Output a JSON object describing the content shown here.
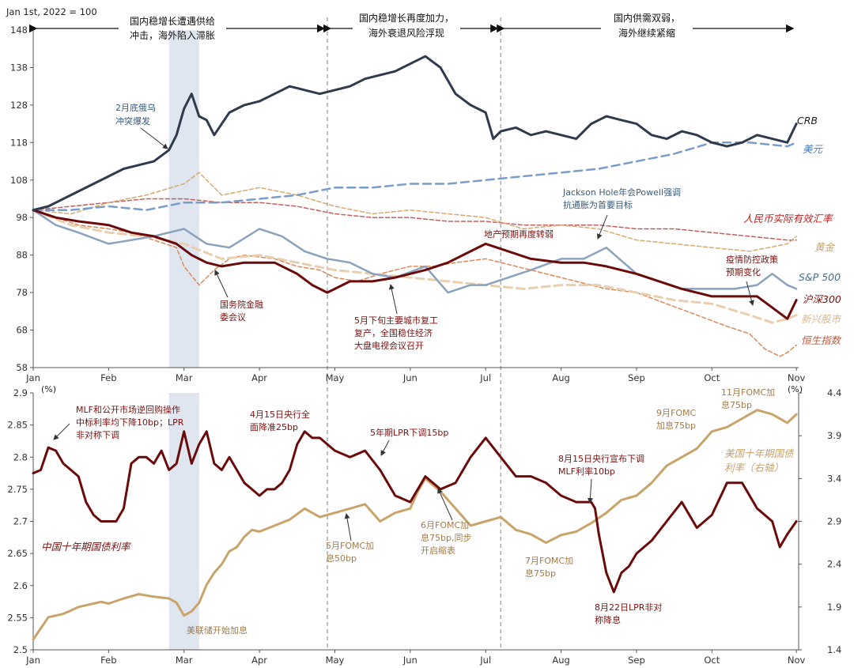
{
  "phases": [
    {
      "lines": [
        "国内稳增长遭遇供给",
        "冲击，海外陷入滞胀"
      ]
    },
    {
      "lines": [
        "国内稳增长再度加力，",
        "海外衰退风险浮现"
      ]
    },
    {
      "lines": [
        "国内供需双弱，",
        "海外继续紧缩"
      ]
    }
  ],
  "colors": {
    "crb": "#2f3a4c",
    "usd": "#7a9cc8",
    "rmb_reer": "#c46060",
    "gold": "#d4aa70",
    "sp500": "#8aa2bc",
    "csi300": "#6b0a0a",
    "em_equity": "#e8cfb0",
    "hsi": "#d98a5a",
    "china_10y": "#6b0a0a",
    "us_10y": "#c9a46a",
    "shade": "#dfe6ef"
  },
  "top_chart": {
    "base_note": "Jan 1st, 2022 = 100",
    "series": [
      {
        "name": "CRB"
      },
      {
        "name": "美元"
      },
      {
        "name": "人民币实际有效汇率"
      },
      {
        "name": "黄金"
      },
      {
        "name": "S&P 500"
      },
      {
        "name": "沪深300"
      },
      {
        "name": "新兴股市"
      },
      {
        "name": "恒生指数"
      }
    ],
    "annotations": [
      {
        "lines": [
          "2月底俄乌",
          "冲突爆发"
        ]
      },
      {
        "lines": [
          "Jackson Hole年会Powell强调",
          "抗通胀为首要目标"
        ]
      },
      {
        "lines": [
          "地产预期再度转弱"
        ]
      },
      {
        "lines": [
          "国务院金融",
          "委会议"
        ]
      },
      {
        "lines": [
          "5月下旬主要城市复工",
          "复产，全国稳住经济",
          "大盘电视会议召开"
        ]
      },
      {
        "lines": [
          "疫情防控政策",
          "预期变化"
        ]
      }
    ]
  },
  "bottom_chart": {
    "left_unit": "(%)",
    "right_unit": "(%)",
    "series": [
      {
        "name": "中国十年期国债利率"
      },
      {
        "name_lines": [
          "美国十年期国债",
          "利率（右轴）"
        ]
      }
    ],
    "annotations": [
      {
        "lines": [
          "MLF和公开市场逆回购操作",
          "中标利率均下降10bp；LPR",
          "非对称下调"
        ]
      },
      {
        "lines": [
          "4月15日央行全",
          "面降准25bp"
        ]
      },
      {
        "lines": [
          "5年期LPR下调15bp"
        ]
      },
      {
        "lines": [
          "8月15日央行宣布下调",
          "MLF利率10bp"
        ]
      },
      {
        "lines": [
          "8月22日LPR非对",
          "称降息"
        ]
      },
      {
        "lines": [
          "美联储开始加息"
        ]
      },
      {
        "lines": [
          "5月FOMC加",
          "息50bp"
        ]
      },
      {
        "lines": [
          "6月FOMC加",
          "息75bp,同步",
          "开启缩表"
        ]
      },
      {
        "lines": [
          "7月FOMC加",
          "息75bp"
        ]
      },
      {
        "lines": [
          "9月FOMC",
          "加息75bp"
        ]
      },
      {
        "lines": [
          "11月FOMC加",
          "息75bp"
        ]
      }
    ]
  },
  "chart_data": [
    {
      "type": "line",
      "title": "",
      "ylabel": "Jan 1st, 2022 = 100",
      "ylim": [
        58,
        148
      ],
      "yticks": [
        58,
        68,
        78,
        88,
        98,
        108,
        118,
        128,
        138,
        148
      ],
      "x_months": [
        1,
        2,
        3,
        4,
        5,
        6,
        7,
        8,
        9,
        10,
        11.12
      ],
      "xlim": [
        1,
        11.15
      ],
      "month_labels": [
        "Jan",
        "Feb",
        "Mar",
        "Apr",
        "May",
        "Jun",
        "Jul",
        "Aug",
        "Sep",
        "Oct",
        "Nov"
      ],
      "shaded_period": [
        2.8,
        3.2
      ],
      "phase_boundaries": [
        4.9,
        7.2
      ],
      "series": [
        {
          "name": "CRB",
          "key": "crb",
          "style": "solid",
          "width": 3,
          "x": [
            1,
            1.2,
            1.4,
            1.6,
            1.8,
            2,
            2.2,
            2.4,
            2.6,
            2.8,
            2.9,
            3.0,
            3.1,
            3.2,
            3.3,
            3.4,
            3.6,
            3.8,
            4.0,
            4.2,
            4.4,
            4.6,
            4.8,
            5.0,
            5.2,
            5.4,
            5.6,
            5.8,
            6.0,
            6.2,
            6.4,
            6.6,
            6.8,
            7.0,
            7.1,
            7.2,
            7.4,
            7.6,
            7.8,
            8.0,
            8.2,
            8.4,
            8.6,
            8.8,
            9.0,
            9.2,
            9.4,
            9.6,
            9.8,
            10.0,
            10.2,
            10.4,
            10.6,
            10.8,
            11.0,
            11.12
          ],
          "y": [
            100,
            101,
            103,
            105,
            107,
            109,
            111,
            112,
            113,
            116,
            120,
            127,
            131,
            125,
            124,
            120,
            126,
            128,
            129,
            131,
            133,
            132,
            131,
            132,
            133,
            135,
            136,
            137,
            139,
            141,
            138,
            131,
            128,
            126,
            119,
            121,
            122,
            120,
            121,
            120,
            119,
            123,
            125,
            124,
            123,
            120,
            119,
            121,
            120,
            118,
            117,
            118,
            120,
            119,
            118,
            123
          ]
        },
        {
          "name": "美元",
          "key": "usd",
          "style": "dash",
          "width": 2.5,
          "x": [
            1,
            1.5,
            2,
            2.5,
            3,
            3.5,
            4,
            4.5,
            5,
            5.5,
            6,
            6.5,
            7,
            7.5,
            8,
            8.5,
            9,
            9.5,
            10,
            10.5,
            11,
            11.12
          ],
          "y": [
            100,
            100,
            101,
            100,
            102,
            102,
            103,
            104,
            106,
            106,
            107,
            107,
            108,
            109,
            110,
            111,
            113,
            115,
            118,
            118,
            117,
            118
          ]
        },
        {
          "name": "人民币实际有效汇率",
          "key": "rmb_reer",
          "style": "dash",
          "width": 1.5,
          "x": [
            1,
            1.5,
            2,
            2.5,
            3,
            3.5,
            4,
            4.5,
            5,
            5.5,
            6,
            6.5,
            7,
            7.5,
            8,
            8.5,
            9,
            9.5,
            10,
            10.5,
            11,
            11.12
          ],
          "y": [
            100,
            101,
            102,
            103,
            103,
            102,
            102,
            101,
            99,
            98,
            98,
            97,
            97,
            96,
            96,
            96,
            95,
            95,
            94,
            93,
            92,
            92
          ]
        },
        {
          "name": "黄金",
          "key": "gold",
          "style": "dash",
          "width": 1.5,
          "x": [
            1,
            1.5,
            2,
            2.5,
            3,
            3.2,
            3.5,
            4,
            4.5,
            5,
            5.5,
            6,
            6.5,
            7,
            7.5,
            8,
            8.5,
            9,
            9.5,
            10,
            10.5,
            11,
            11.12
          ],
          "y": [
            100,
            99,
            102,
            104,
            107,
            110,
            104,
            106,
            104,
            101,
            99,
            100,
            99,
            98,
            95,
            96,
            95,
            92,
            91,
            90,
            89,
            91,
            93
          ]
        },
        {
          "name": "S&P 500",
          "key": "sp500",
          "style": "solid",
          "width": 2.5,
          "x": [
            1,
            1.3,
            1.6,
            2,
            2.3,
            2.6,
            3,
            3.3,
            3.6,
            4,
            4.3,
            4.6,
            4.9,
            5.2,
            5.5,
            5.8,
            6.2,
            6.5,
            6.8,
            7.0,
            7.3,
            7.6,
            8.0,
            8.3,
            8.6,
            9.0,
            9.3,
            9.6,
            10,
            10.3,
            10.6,
            10.8,
            11,
            11.12
          ],
          "y": [
            100,
            96,
            94,
            91,
            92,
            93,
            95,
            91,
            90,
            95,
            93,
            89,
            87,
            86,
            83,
            82,
            85,
            78,
            80,
            80,
            82,
            84,
            87,
            87,
            90,
            83,
            81,
            79,
            79,
            79,
            80,
            83,
            80,
            79
          ]
        },
        {
          "name": "沪深300",
          "key": "csi300",
          "style": "solid",
          "width": 3,
          "x": [
            1,
            1.3,
            1.6,
            2,
            2.3,
            2.6,
            2.9,
            3.1,
            3.3,
            3.5,
            3.8,
            4.2,
            4.5,
            4.7,
            4.9,
            5.2,
            5.5,
            5.8,
            6.2,
            6.5,
            6.8,
            7.0,
            7.3,
            7.6,
            8,
            8.3,
            8.6,
            9,
            9.3,
            9.6,
            10,
            10.3,
            10.6,
            10.8,
            11,
            11.12
          ],
          "y": [
            100,
            98,
            97,
            96,
            94,
            93,
            91,
            88,
            86,
            85,
            86,
            86,
            83,
            80,
            78,
            81,
            81,
            82,
            84,
            86,
            89,
            91,
            89,
            87,
            86,
            86,
            85,
            83,
            81,
            79,
            77,
            77,
            77,
            74,
            71,
            76
          ]
        },
        {
          "name": "新兴股市",
          "key": "em_equity",
          "style": "dash",
          "width": 3,
          "x": [
            1,
            1.5,
            2,
            2.5,
            3,
            3.5,
            4,
            4.5,
            5,
            5.5,
            6,
            6.5,
            7,
            7.5,
            8,
            8.5,
            9,
            9.5,
            10,
            10.5,
            10.8,
            11,
            11.12
          ],
          "y": [
            100,
            96,
            94,
            93,
            91,
            87,
            88,
            86,
            84,
            83,
            82,
            81,
            80,
            79,
            80,
            80,
            78,
            76,
            75,
            72,
            70,
            71,
            72
          ]
        },
        {
          "name": "恒生指数",
          "key": "hsi",
          "style": "dash",
          "width": 1.5,
          "x": [
            1,
            1.3,
            1.6,
            2,
            2.3,
            2.6,
            2.9,
            3.0,
            3.2,
            3.4,
            3.6,
            3.8,
            4.2,
            4.5,
            4.8,
            5.0,
            5.3,
            5.6,
            6.0,
            6.3,
            6.6,
            7.0,
            7.4,
            7.8,
            8.2,
            8.6,
            9.0,
            9.4,
            9.8,
            10.2,
            10.5,
            10.7,
            10.9,
            11.0,
            11.12
          ],
          "y": [
            100,
            98,
            96,
            95,
            94,
            92,
            90,
            85,
            80,
            84,
            87,
            88,
            87,
            85,
            84,
            82,
            81,
            83,
            85,
            85,
            86,
            87,
            85,
            83,
            81,
            79,
            78,
            75,
            72,
            69,
            67,
            63,
            61,
            62,
            64
          ]
        }
      ]
    },
    {
      "type": "line",
      "title": "",
      "xlim": [
        1,
        11.15
      ],
      "month_labels": [
        "Jan",
        "Feb",
        "Mar",
        "Apr",
        "May",
        "Jun",
        "Jul",
        "Aug",
        "Sep",
        "Oct",
        "Nov"
      ],
      "left_axis": {
        "label": "(%)",
        "ylim": [
          2.5,
          2.9
        ],
        "ticks": [
          2.5,
          2.55,
          2.6,
          2.65,
          2.7,
          2.75,
          2.8,
          2.85,
          2.9
        ]
      },
      "right_axis": {
        "label": "(%)",
        "ylim": [
          1.4,
          4.4
        ],
        "ticks": [
          1.4,
          1.9,
          2.4,
          2.9,
          3.4,
          3.9,
          4.4
        ]
      },
      "series": [
        {
          "name": "中国十年期国债利率",
          "key": "china_10y",
          "axis": "left",
          "width": 3,
          "x": [
            1,
            1.1,
            1.2,
            1.3,
            1.4,
            1.5,
            1.6,
            1.7,
            1.8,
            1.9,
            2.0,
            2.1,
            2.2,
            2.3,
            2.4,
            2.5,
            2.6,
            2.7,
            2.8,
            2.9,
            3.0,
            3.1,
            3.2,
            3.3,
            3.4,
            3.5,
            3.6,
            3.7,
            3.8,
            3.9,
            4.0,
            4.1,
            4.2,
            4.3,
            4.4,
            4.5,
            4.6,
            4.7,
            4.8,
            4.9,
            5.0,
            5.2,
            5.4,
            5.6,
            5.8,
            6.0,
            6.2,
            6.4,
            6.6,
            6.8,
            7.0,
            7.2,
            7.4,
            7.6,
            7.8,
            8.0,
            8.2,
            8.4,
            8.45,
            8.5,
            8.6,
            8.7,
            8.8,
            8.9,
            9.0,
            9.2,
            9.4,
            9.6,
            9.8,
            10.0,
            10.2,
            10.4,
            10.6,
            10.8,
            10.9,
            11.0,
            11.12
          ],
          "y": [
            2.775,
            2.78,
            2.815,
            2.81,
            2.79,
            2.78,
            2.77,
            2.73,
            2.71,
            2.7,
            2.7,
            2.7,
            2.72,
            2.79,
            2.8,
            2.8,
            2.79,
            2.81,
            2.78,
            2.79,
            2.84,
            2.79,
            2.82,
            2.84,
            2.79,
            2.78,
            2.8,
            2.78,
            2.76,
            2.75,
            2.74,
            2.75,
            2.75,
            2.76,
            2.78,
            2.82,
            2.84,
            2.83,
            2.83,
            2.82,
            2.81,
            2.8,
            2.81,
            2.78,
            2.74,
            2.73,
            2.77,
            2.75,
            2.76,
            2.8,
            2.83,
            2.8,
            2.77,
            2.77,
            2.76,
            2.74,
            2.73,
            2.73,
            2.72,
            2.68,
            2.62,
            2.59,
            2.62,
            2.63,
            2.65,
            2.67,
            2.7,
            2.73,
            2.69,
            2.71,
            2.76,
            2.76,
            2.72,
            2.7,
            2.66,
            2.68,
            2.7
          ]
        },
        {
          "name": "美国十年期国债利率（右轴）",
          "key": "us_10y",
          "axis": "right",
          "width": 3,
          "x": [
            1,
            1.1,
            1.2,
            1.3,
            1.4,
            1.5,
            1.6,
            1.7,
            1.8,
            1.9,
            2.0,
            2.2,
            2.4,
            2.6,
            2.8,
            2.9,
            3.0,
            3.1,
            3.2,
            3.3,
            3.4,
            3.5,
            3.6,
            3.7,
            3.8,
            3.9,
            4.0,
            4.2,
            4.4,
            4.6,
            4.8,
            5.0,
            5.2,
            5.4,
            5.6,
            5.8,
            6.0,
            6.1,
            6.2,
            6.4,
            6.6,
            6.8,
            7.0,
            7.2,
            7.4,
            7.6,
            7.8,
            8.0,
            8.2,
            8.4,
            8.6,
            8.8,
            9.0,
            9.2,
            9.4,
            9.6,
            9.8,
            10.0,
            10.2,
            10.4,
            10.6,
            10.8,
            11.0,
            11.12
          ],
          "y": [
            1.52,
            1.65,
            1.78,
            1.8,
            1.82,
            1.86,
            1.9,
            1.92,
            1.94,
            1.96,
            1.94,
            2.0,
            2.05,
            2.02,
            2.0,
            1.95,
            1.8,
            1.85,
            1.95,
            2.16,
            2.3,
            2.4,
            2.55,
            2.6,
            2.72,
            2.8,
            2.78,
            2.85,
            2.92,
            3.05,
            2.95,
            3.0,
            3.05,
            3.1,
            2.9,
            3.0,
            3.05,
            3.25,
            3.4,
            3.25,
            3.05,
            2.85,
            2.9,
            2.95,
            2.8,
            2.75,
            2.65,
            2.74,
            2.78,
            2.88,
            3.0,
            3.15,
            3.2,
            3.35,
            3.55,
            3.65,
            3.75,
            3.95,
            4.0,
            4.1,
            4.2,
            4.15,
            4.05,
            4.15
          ]
        }
      ],
      "shaded_period": [
        2.8,
        3.2
      ],
      "phase_boundaries": [
        4.9,
        7.2
      ]
    }
  ]
}
